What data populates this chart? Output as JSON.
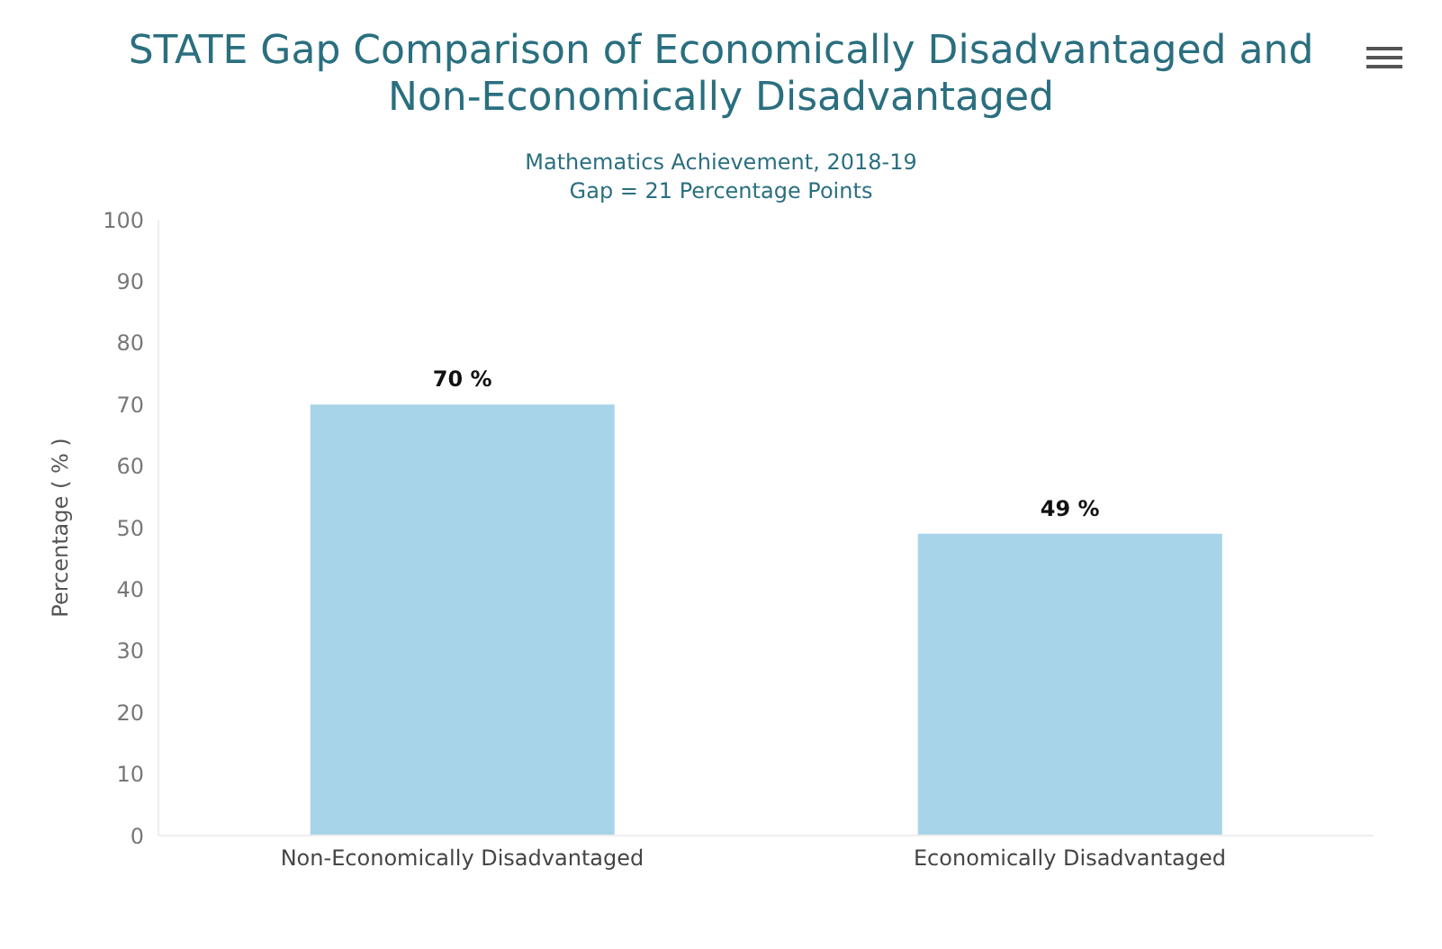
{
  "chart_data": {
    "type": "bar",
    "title": "STATE Gap Comparison of Economically Disadvantaged and Non-Economically Disadvantaged",
    "subtitle": "Mathematics Achievement, 2018-19\nGap = 21 Percentage Points",
    "ylabel": "Percentage ( % )",
    "categories": [
      "Non-Economically Disadvantaged",
      "Economically Disadvantaged"
    ],
    "values": [
      70,
      49
    ],
    "color": "#a8d4ea",
    "value_labels": [
      "70 %",
      "49 %"
    ],
    "ylim": [
      0,
      100
    ],
    "yticks": [
      0,
      10,
      20,
      30,
      40,
      50,
      60,
      70,
      80,
      90,
      100
    ],
    "grid": false
  }
}
